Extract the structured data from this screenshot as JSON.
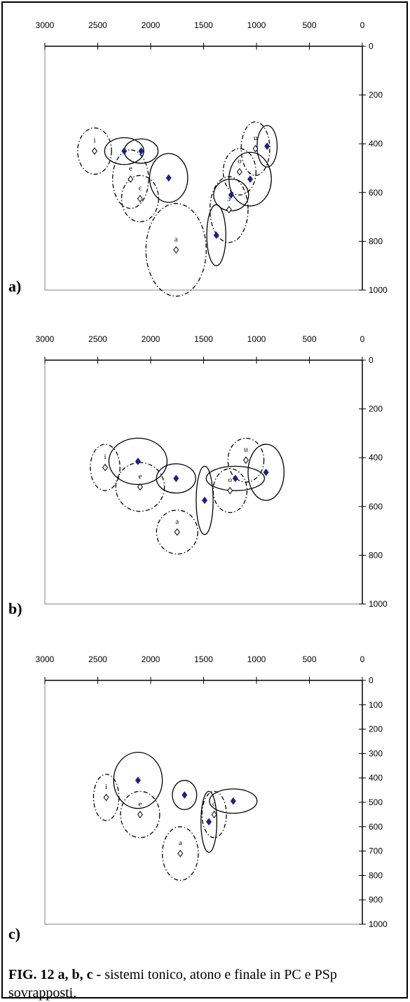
{
  "figure": {
    "caption_bold": "FIG. 12 a, b, c - ",
    "caption_text": "sistemi tonico, atono e finale in PC e PSp sovrapposti."
  },
  "chart_data": [
    {
      "panel_label": "a)",
      "type": "scatter",
      "x_ticks": [
        "3000",
        "2500",
        "2000",
        "1500",
        "1000",
        "500",
        "0"
      ],
      "y_ticks": [
        "0",
        "200",
        "400",
        "600",
        "800",
        "1000"
      ],
      "xlim": [
        3000,
        0
      ],
      "ylim": [
        0,
        1000
      ],
      "x_reversed": true,
      "y_reversed": true,
      "grid": false,
      "series": [
        {
          "marker": "filled-diamond",
          "color": "#1a237e",
          "ellipse_style": "solid",
          "points": [
            {
              "x": 2250,
              "y": 430,
              "rx": 185,
              "ry": 55
            },
            {
              "x": 2090,
              "y": 430,
              "rx": 160,
              "ry": 50
            },
            {
              "x": 1830,
              "y": 540,
              "rx": 180,
              "ry": 100
            },
            {
              "x": 1380,
              "y": 775,
              "rx": 90,
              "ry": 125
            },
            {
              "x": 1240,
              "y": 610,
              "rx": 165,
              "ry": 65
            },
            {
              "x": 1060,
              "y": 545,
              "rx": 200,
              "ry": 110
            },
            {
              "x": 900,
              "y": 410,
              "rx": 95,
              "ry": 85
            }
          ]
        },
        {
          "marker": "open-diamond",
          "color": "#000000",
          "ellipse_style": "dash-dot",
          "points": [
            {
              "label": "i",
              "x": 2530,
              "y": 430,
              "rx": 160,
              "ry": 95
            },
            {
              "label": "e",
              "x": 2190,
              "y": 545,
              "rx": 170,
              "ry": 120
            },
            {
              "label": "ɛ",
              "x": 2100,
              "y": 625,
              "rx": 175,
              "ry": 95
            },
            {
              "label": "a",
              "x": 1760,
              "y": 835,
              "rx": 285,
              "ry": 190
            },
            {
              "label": "ɔ",
              "x": 1260,
              "y": 670,
              "rx": 180,
              "ry": 135
            },
            {
              "label": "o",
              "x": 1160,
              "y": 515,
              "rx": 155,
              "ry": 95
            },
            {
              "label": "u",
              "x": 1010,
              "y": 420,
              "rx": 135,
              "ry": 110
            }
          ]
        }
      ]
    },
    {
      "panel_label": "b)",
      "type": "scatter",
      "x_ticks": [
        "3000",
        "2500",
        "2000",
        "1500",
        "1000",
        "500",
        "0"
      ],
      "y_ticks": [
        "0",
        "200",
        "400",
        "600",
        "800",
        "1000"
      ],
      "xlim": [
        3000,
        0
      ],
      "ylim": [
        0,
        1000
      ],
      "x_reversed": true,
      "y_reversed": true,
      "grid": false,
      "series": [
        {
          "marker": "filled-diamond",
          "color": "#1a237e",
          "ellipse_style": "solid",
          "points": [
            {
              "x": 2120,
              "y": 415,
              "rx": 275,
              "ry": 95
            },
            {
              "x": 1760,
              "y": 485,
              "rx": 185,
              "ry": 60
            },
            {
              "x": 1490,
              "y": 575,
              "rx": 80,
              "ry": 140
            },
            {
              "x": 1200,
              "y": 485,
              "rx": 275,
              "ry": 50
            },
            {
              "x": 910,
              "y": 460,
              "rx": 170,
              "ry": 115
            }
          ]
        },
        {
          "marker": "open-diamond",
          "color": "#000000",
          "ellipse_style": "dash-dot",
          "points": [
            {
              "label": "i",
              "x": 2430,
              "y": 440,
              "rx": 140,
              "ry": 95
            },
            {
              "label": "e",
              "x": 2100,
              "y": 520,
              "rx": 230,
              "ry": 100
            },
            {
              "label": "a",
              "x": 1750,
              "y": 705,
              "rx": 195,
              "ry": 90
            },
            {
              "label": "o",
              "x": 1250,
              "y": 535,
              "rx": 160,
              "ry": 90
            },
            {
              "label": "u",
              "x": 1100,
              "y": 410,
              "rx": 170,
              "ry": 90
            }
          ]
        }
      ]
    },
    {
      "panel_label": "c)",
      "type": "scatter",
      "x_ticks": [
        "3000",
        "2500",
        "2000",
        "1500",
        "1000",
        "500",
        "0"
      ],
      "y_ticks": [
        "0",
        "100",
        "200",
        "300",
        "400",
        "500",
        "600",
        "700",
        "800",
        "900",
        "1000"
      ],
      "xlim": [
        3000,
        0
      ],
      "ylim": [
        0,
        1000
      ],
      "x_reversed": true,
      "y_reversed": true,
      "grid": false,
      "series": [
        {
          "marker": "filled-diamond",
          "color": "#1a237e",
          "ellipse_style": "solid",
          "points": [
            {
              "x": 2120,
              "y": 410,
              "rx": 230,
              "ry": 115
            },
            {
              "x": 1680,
              "y": 470,
              "rx": 115,
              "ry": 60
            },
            {
              "x": 1450,
              "y": 580,
              "rx": 75,
              "ry": 125
            },
            {
              "x": 1220,
              "y": 495,
              "rx": 225,
              "ry": 50
            }
          ]
        },
        {
          "marker": "open-diamond",
          "color": "#000000",
          "ellipse_style": "dash-dot",
          "points": [
            {
              "label": "i",
              "x": 2420,
              "y": 480,
              "rx": 120,
              "ry": 95
            },
            {
              "label": "e",
              "x": 2100,
              "y": 550,
              "rx": 185,
              "ry": 95
            },
            {
              "label": "a",
              "x": 1720,
              "y": 710,
              "rx": 170,
              "ry": 110
            },
            {
              "label": "o",
              "x": 1400,
              "y": 550,
              "rx": 115,
              "ry": 95
            }
          ]
        }
      ]
    }
  ]
}
